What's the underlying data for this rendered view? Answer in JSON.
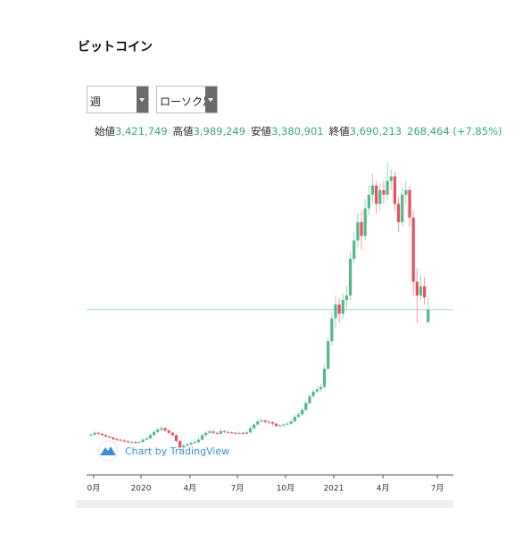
{
  "title": "ビットコイン",
  "controls": {
    "interval": "週",
    "style": "ローソク足"
  },
  "legend": [
    {
      "label": "始値",
      "value": "3,421,749"
    },
    {
      "label": "高値",
      "value": "3,989,249"
    },
    {
      "label": "安値",
      "value": "3,380,901"
    },
    {
      "label": "終値",
      "value": "3,690,213"
    }
  ],
  "change": "268,464 (+7.85%)",
  "chart_data": {
    "type": "candlestick",
    "watermark": "Chart by TradingView",
    "up_color": "#53b987",
    "down_color": "#eb4d5c",
    "price_line_color": "#9fd3df",
    "x": [
      0,
      1,
      2,
      3,
      4,
      5,
      6,
      7,
      8,
      9,
      10,
      11,
      12,
      13,
      14,
      15,
      16,
      17,
      18,
      19,
      20,
      21,
      22,
      23,
      24,
      25,
      26,
      27,
      28,
      29,
      30,
      31,
      32,
      33,
      34,
      35,
      36,
      37,
      38,
      39,
      40,
      41,
      42,
      43,
      44,
      45,
      46,
      47,
      48,
      49,
      50,
      51,
      52,
      53,
      54,
      55,
      56,
      57,
      58,
      59,
      60,
      61,
      62,
      63,
      64,
      65,
      66,
      67,
      68,
      69,
      70,
      71,
      72,
      73,
      74,
      75,
      76,
      77,
      78,
      79,
      80,
      81,
      82,
      83,
      84,
      85,
      86,
      87,
      88,
      89,
      90,
      91
    ],
    "open": [
      940000,
      960000,
      1000000,
      980000,
      950000,
      920000,
      900000,
      860000,
      850000,
      830000,
      810000,
      800000,
      800000,
      790000,
      800000,
      850000,
      880000,
      950000,
      1020000,
      1070000,
      1100000,
      1050000,
      1000000,
      950000,
      820000,
      680000,
      720000,
      750000,
      780000,
      800000,
      850000,
      950000,
      1000000,
      1030000,
      1000000,
      980000,
      1040000,
      1020000,
      1010000,
      1000000,
      990000,
      1000000,
      980000,
      1010000,
      1100000,
      1180000,
      1250000,
      1270000,
      1240000,
      1230000,
      1200000,
      1150000,
      1160000,
      1180000,
      1200000,
      1250000,
      1350000,
      1400000,
      1500000,
      1650000,
      1800000,
      1900000,
      1950000,
      2000000,
      2400000,
      3000000,
      3500000,
      3800000,
      3600000,
      3900000,
      4000000,
      4800000,
      5200000,
      5600000,
      5300000,
      5900000,
      6200000,
      6400000,
      6000000,
      6300000,
      6200000,
      6500000,
      6600000,
      6000000,
      5600000,
      6200000,
      6300000,
      5700000,
      4300000,
      4000000,
      4200000,
      3421749
    ],
    "high": [
      990000,
      1030000,
      1030000,
      1000000,
      970000,
      940000,
      920000,
      890000,
      870000,
      860000,
      840000,
      830000,
      830000,
      830000,
      880000,
      920000,
      990000,
      1060000,
      1110000,
      1150000,
      1130000,
      1080000,
      1030000,
      970000,
      850000,
      760000,
      790000,
      820000,
      840000,
      890000,
      990000,
      1040000,
      1070000,
      1060000,
      1030000,
      1070000,
      1060000,
      1040000,
      1030000,
      1020000,
      1030000,
      1020000,
      1040000,
      1140000,
      1220000,
      1300000,
      1320000,
      1300000,
      1270000,
      1250000,
      1220000,
      1190000,
      1210000,
      1230000,
      1280000,
      1390000,
      1450000,
      1550000,
      1700000,
      1860000,
      1960000,
      2020000,
      2080000,
      2480000,
      3100000,
      3650000,
      4000000,
      3950000,
      4050000,
      4200000,
      4950000,
      5400000,
      5800000,
      5850000,
      6100000,
      6400000,
      6650000,
      6500000,
      6450000,
      6500000,
      6900000,
      6750000,
      6700000,
      6150000,
      6350000,
      6500000,
      6400000,
      5850000,
      4600000,
      4450000,
      4400000,
      3989249
    ],
    "low": [
      920000,
      940000,
      950000,
      930000,
      900000,
      880000,
      840000,
      820000,
      810000,
      790000,
      780000,
      770000,
      760000,
      770000,
      780000,
      830000,
      860000,
      930000,
      990000,
      1040000,
      1020000,
      970000,
      920000,
      780000,
      600000,
      640000,
      690000,
      720000,
      750000,
      770000,
      830000,
      920000,
      970000,
      970000,
      950000,
      960000,
      990000,
      990000,
      980000,
      970000,
      970000,
      960000,
      960000,
      990000,
      1080000,
      1160000,
      1220000,
      1200000,
      1200000,
      1160000,
      1120000,
      1130000,
      1140000,
      1160000,
      1180000,
      1230000,
      1320000,
      1370000,
      1470000,
      1620000,
      1760000,
      1850000,
      1900000,
      1970000,
      2360000,
      2900000,
      3300000,
      3400000,
      3500000,
      3700000,
      3900000,
      4700000,
      5050000,
      5000000,
      5200000,
      5750000,
      6000000,
      5800000,
      5850000,
      6000000,
      6100000,
      6300000,
      5850000,
      5400000,
      5500000,
      6000000,
      5500000,
      4000000,
      3400000,
      3900000,
      3800000,
      3380901
    ],
    "close": [
      960000,
      1000000,
      980000,
      950000,
      920000,
      900000,
      860000,
      850000,
      830000,
      810000,
      800000,
      800000,
      790000,
      800000,
      850000,
      880000,
      950000,
      1020000,
      1070000,
      1100000,
      1050000,
      1000000,
      950000,
      820000,
      680000,
      720000,
      750000,
      780000,
      800000,
      850000,
      950000,
      1000000,
      1030000,
      1000000,
      980000,
      1040000,
      1020000,
      1010000,
      1000000,
      990000,
      1000000,
      980000,
      1010000,
      1100000,
      1180000,
      1250000,
      1270000,
      1240000,
      1230000,
      1200000,
      1150000,
      1160000,
      1180000,
      1200000,
      1250000,
      1350000,
      1400000,
      1500000,
      1650000,
      1800000,
      1900000,
      1950000,
      2000000,
      2400000,
      3000000,
      3500000,
      3800000,
      3600000,
      3900000,
      4000000,
      4800000,
      5200000,
      5600000,
      5300000,
      5900000,
      6200000,
      6400000,
      6000000,
      6300000,
      6200000,
      6500000,
      6600000,
      6000000,
      5600000,
      6200000,
      6300000,
      5700000,
      4300000,
      4000000,
      4200000,
      3958677,
      3690213
    ],
    "xlim": [
      -1.2,
      97.8
    ],
    "ylim": [
      80000,
      7040000
    ],
    "xticks": [
      {
        "value": 0.7,
        "label": "0月"
      },
      {
        "value": 13.5,
        "label": "2020"
      },
      {
        "value": 26.7,
        "label": "4月"
      },
      {
        "value": 39.5,
        "label": "7月"
      },
      {
        "value": 52.5,
        "label": "10月"
      },
      {
        "value": 65.5,
        "label": "2021"
      },
      {
        "value": 78.8,
        "label": "4月"
      },
      {
        "value": 93.5,
        "label": "7月"
      }
    ]
  }
}
